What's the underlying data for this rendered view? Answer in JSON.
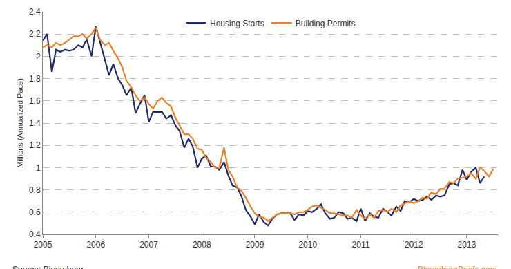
{
  "chart_data": {
    "type": "line",
    "y_label": "Millions (Annualized Pace)",
    "annotations": [
      "Source: Bloomberg",
      "BloombergBriefs.com"
    ],
    "x": [
      2005.0,
      2005.08,
      2005.17,
      2005.25,
      2005.33,
      2005.42,
      2005.5,
      2005.58,
      2005.67,
      2005.75,
      2005.83,
      2005.92,
      2006.0,
      2006.08,
      2006.17,
      2006.25,
      2006.33,
      2006.42,
      2006.5,
      2006.58,
      2006.67,
      2006.75,
      2006.83,
      2006.92,
      2007.0,
      2007.08,
      2007.17,
      2007.25,
      2007.33,
      2007.42,
      2007.5,
      2007.58,
      2007.67,
      2007.75,
      2007.83,
      2007.92,
      2008.0,
      2008.08,
      2008.17,
      2008.25,
      2008.33,
      2008.42,
      2008.5,
      2008.58,
      2008.67,
      2008.75,
      2008.83,
      2008.92,
      2009.0,
      2009.08,
      2009.17,
      2009.25,
      2009.33,
      2009.42,
      2009.5,
      2009.58,
      2009.67,
      2009.75,
      2009.83,
      2009.92,
      2010.0,
      2010.08,
      2010.17,
      2010.25,
      2010.33,
      2010.42,
      2010.5,
      2010.58,
      2010.67,
      2010.75,
      2010.83,
      2010.92,
      2011.0,
      2011.08,
      2011.17,
      2011.25,
      2011.33,
      2011.42,
      2011.5,
      2011.58,
      2011.67,
      2011.75,
      2011.83,
      2011.92,
      2012.0,
      2012.08,
      2012.17,
      2012.25,
      2012.33,
      2012.42,
      2012.5,
      2012.58,
      2012.67,
      2012.75,
      2012.83,
      2012.92,
      2013.0,
      2013.08,
      2013.17,
      2013.25,
      2013.33,
      2013.42,
      2013.5
    ],
    "series": [
      {
        "name": "Housing Starts",
        "color": "#1f2a6e",
        "values": [
          2.14,
          2.2,
          1.86,
          2.06,
          2.04,
          2.06,
          2.05,
          2.06,
          2.1,
          2.08,
          2.15,
          2.0,
          2.27,
          2.13,
          1.97,
          1.83,
          1.93,
          1.8,
          1.74,
          1.65,
          1.72,
          1.49,
          1.57,
          1.65,
          1.41,
          1.5,
          1.5,
          1.5,
          1.44,
          1.47,
          1.38,
          1.33,
          1.18,
          1.26,
          1.19,
          1.0,
          1.08,
          1.11,
          1.01,
          1.01,
          0.98,
          1.05,
          0.93,
          0.84,
          0.82,
          0.74,
          0.62,
          0.56,
          0.49,
          0.58,
          0.51,
          0.48,
          0.54,
          0.58,
          0.59,
          0.59,
          0.59,
          0.53,
          0.58,
          0.57,
          0.61,
          0.6,
          0.63,
          0.67,
          0.59,
          0.54,
          0.55,
          0.6,
          0.59,
          0.54,
          0.55,
          0.52,
          0.63,
          0.52,
          0.59,
          0.56,
          0.55,
          0.63,
          0.6,
          0.57,
          0.65,
          0.61,
          0.7,
          0.69,
          0.72,
          0.7,
          0.71,
          0.74,
          0.71,
          0.75,
          0.74,
          0.75,
          0.85,
          0.86,
          0.84,
          0.98,
          0.89,
          0.96,
          1.0,
          0.86,
          0.92,
          null,
          null
        ]
      },
      {
        "name": "Building Permits",
        "color": "#f07f22",
        "values": [
          2.08,
          2.1,
          2.08,
          2.12,
          2.1,
          2.12,
          2.15,
          2.18,
          2.18,
          2.2,
          2.16,
          2.2,
          2.26,
          2.15,
          2.1,
          2.12,
          2.05,
          1.98,
          1.9,
          1.78,
          1.72,
          1.65,
          1.6,
          1.63,
          1.57,
          1.53,
          1.6,
          1.63,
          1.58,
          1.55,
          1.45,
          1.38,
          1.3,
          1.3,
          1.26,
          1.17,
          1.16,
          1.09,
          1.05,
          1.0,
          1.0,
          1.18,
          0.98,
          0.92,
          0.82,
          0.79,
          0.73,
          0.65,
          0.59,
          0.56,
          0.55,
          0.52,
          0.55,
          0.58,
          0.59,
          0.59,
          0.59,
          0.58,
          0.6,
          0.6,
          0.62,
          0.65,
          0.66,
          0.64,
          0.62,
          0.59,
          0.59,
          0.58,
          0.57,
          0.57,
          0.55,
          0.62,
          0.57,
          0.54,
          0.58,
          0.55,
          0.61,
          0.62,
          0.6,
          0.63,
          0.6,
          0.66,
          0.68,
          0.7,
          0.68,
          0.7,
          0.73,
          0.72,
          0.78,
          0.76,
          0.81,
          0.81,
          0.87,
          0.86,
          0.9,
          0.91,
          0.92,
          0.95,
          0.9,
          1.0,
          0.97,
          0.92,
          0.99
        ]
      }
    ],
    "xlim": [
      2005,
      2013.6
    ],
    "xticks": [
      2005,
      2006,
      2007,
      2008,
      2009,
      2010,
      2011,
      2012,
      2013
    ],
    "ylim": [
      0.4,
      2.4
    ],
    "yticks": [
      0.4,
      0.6,
      0.8,
      1,
      1.2,
      1.4,
      1.6,
      1.8,
      2,
      2.2,
      2.4
    ],
    "grid": true,
    "legend": "top"
  }
}
